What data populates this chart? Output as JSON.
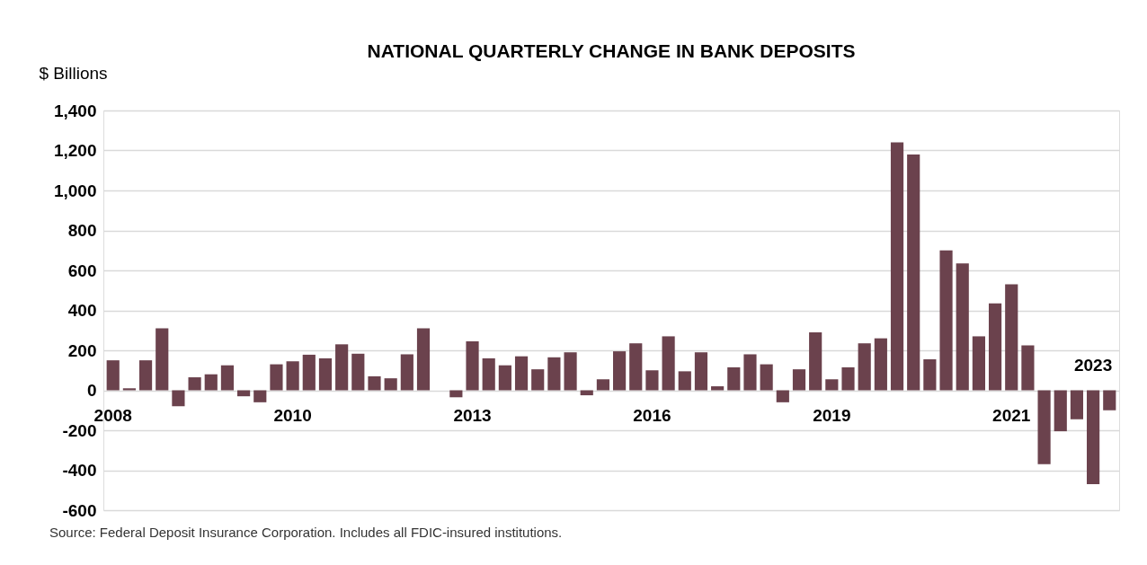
{
  "chart_data": {
    "type": "bar",
    "title": "NATIONAL QUARTERLY CHANGE IN BANK DEPOSITS",
    "ylabel": "$ Billions",
    "categories": [
      "2008",
      null,
      null,
      null,
      null,
      null,
      null,
      null,
      null,
      null,
      null,
      "2010",
      null,
      null,
      null,
      null,
      null,
      null,
      null,
      null,
      null,
      null,
      "2013",
      null,
      null,
      null,
      null,
      null,
      null,
      null,
      null,
      null,
      null,
      "2016",
      null,
      null,
      null,
      null,
      null,
      null,
      null,
      null,
      null,
      null,
      "2019",
      null,
      null,
      null,
      null,
      null,
      null,
      null,
      null,
      null,
      null,
      "2021",
      null,
      null,
      null,
      null,
      "2023",
      null
    ],
    "values": [
      150,
      10,
      150,
      310,
      -80,
      65,
      80,
      125,
      -30,
      -60,
      130,
      145,
      178,
      160,
      230,
      183,
      70,
      60,
      180,
      310,
      0,
      -35,
      245,
      160,
      125,
      170,
      105,
      165,
      190,
      -25,
      55,
      195,
      235,
      100,
      270,
      95,
      190,
      20,
      115,
      180,
      130,
      -60,
      105,
      290,
      55,
      115,
      235,
      260,
      1240,
      1180,
      155,
      700,
      635,
      270,
      435,
      530,
      225,
      -370,
      -205,
      -145,
      -470,
      -100
    ],
    "color": "#6b424d",
    "ylim": [
      -600,
      1400
    ],
    "yticks": [
      {
        "value": -600,
        "label": "-600"
      },
      {
        "value": -400,
        "label": "-400"
      },
      {
        "value": -200,
        "label": "-200"
      },
      0,
      200,
      400,
      600,
      800,
      {
        "value": 1000,
        "label": "1,000"
      },
      {
        "value": 1200,
        "label": "1,200"
      },
      {
        "value": 1400,
        "label": "1,400"
      }
    ],
    "grid": "y",
    "annotations": [
      "Source: Federal Deposit Insurance Corporation. Includes all FDIC-insured institutions."
    ]
  }
}
